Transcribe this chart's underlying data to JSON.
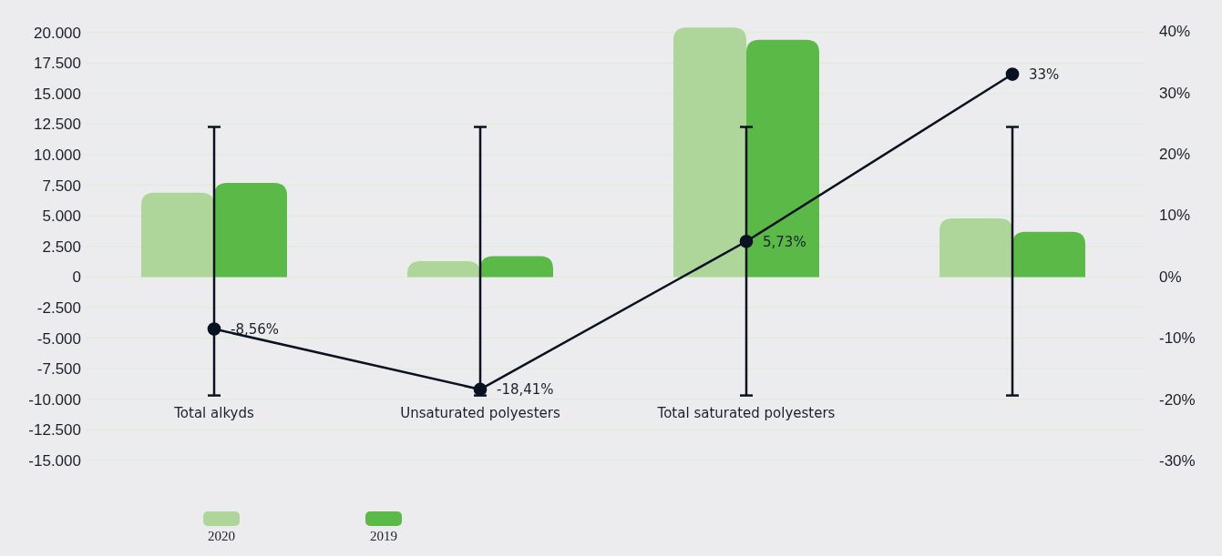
{
  "chart_data": {
    "type": "bar",
    "categories": [
      "Total alkyds",
      "Unsaturated polyesters",
      "Total saturated polyesters",
      null
    ],
    "series": [
      {
        "name": "2020",
        "color": "#aed69a",
        "values": [
          6900,
          1300,
          20400,
          4800
        ]
      },
      {
        "name": "2019",
        "color": "#5bba47",
        "values": [
          7700,
          1700,
          19400,
          3700
        ]
      },
      {
        "type": "line",
        "axis": "y2",
        "color": "#0a1121",
        "values": [
          -8.56,
          -18.41,
          5.73,
          33
        ],
        "value_labels": [
          "-8,56%",
          "-18,41%",
          "5,73%",
          "33%"
        ],
        "errors": [
          [
            -19.4,
            24.4
          ],
          [
            -19.4,
            24.4
          ],
          [
            -19.4,
            24.4
          ],
          [
            -19.4,
            24.4
          ]
        ],
        "marker": "circle"
      }
    ],
    "ylim": [
      -15000,
      20500
    ],
    "yticks": [
      {
        "value": 20000,
        "label": "20.000"
      },
      {
        "value": 17500,
        "label": "17.500"
      },
      {
        "value": 15000,
        "label": "15.000"
      },
      {
        "value": 12500,
        "label": "12.500"
      },
      {
        "value": 10000,
        "label": "10.000"
      },
      {
        "value": 7500,
        "label": "7.500"
      },
      {
        "value": 5000,
        "label": "5.000"
      },
      {
        "value": 2500,
        "label": "2.500"
      },
      0,
      {
        "value": -2500,
        "label": "-2.500"
      },
      {
        "value": -5000,
        "label": "-5.000"
      },
      {
        "value": -7500,
        "label": "-7.500"
      },
      {
        "value": -10000,
        "label": "-10.000"
      },
      {
        "value": -12500,
        "label": "-12.500"
      },
      {
        "value": -15000,
        "label": "-15.000"
      }
    ],
    "y2lim": [
      -30,
      40.8
    ],
    "y2ticks": [
      {
        "value": 40,
        "label": "40%"
      },
      {
        "value": 30,
        "label": "30%"
      },
      {
        "value": 20,
        "label": "20%"
      },
      {
        "value": 10,
        "label": "10%"
      },
      {
        "value": 0,
        "label": "0%"
      },
      {
        "value": -10,
        "label": "-10%"
      },
      {
        "value": -20,
        "label": "-20%"
      },
      {
        "value": -30,
        "label": "-30%"
      }
    ],
    "grid": "y",
    "legend": "bottom"
  }
}
